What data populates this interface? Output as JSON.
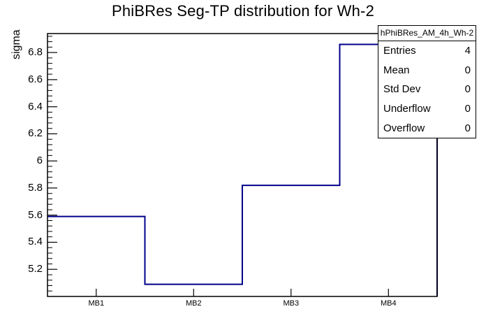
{
  "colors": {
    "line": "#00008b",
    "axis": "#000000",
    "background": "#ffffff"
  },
  "chart_data": {
    "type": "line",
    "style": "step-histogram",
    "title": "PhiBRes Seg-TP distribution for Wh-2",
    "xlabel": "",
    "ylabel": "sigma",
    "categories": [
      "MB1",
      "MB2",
      "MB3",
      "MB4"
    ],
    "values": [
      5.59,
      5.09,
      5.82,
      6.86
    ],
    "ylim": [
      5.0,
      6.94
    ],
    "ytick_values": [
      5.2,
      5.4,
      5.6,
      5.8,
      6,
      6.2,
      6.4,
      6.6,
      6.8
    ],
    "ytick_labels": [
      "5.2",
      "5.4",
      "5.6",
      "5.8",
      "6",
      "6.2",
      "6.4",
      "6.6",
      "6.8"
    ],
    "y_minor_step": 0.04,
    "grid": "off",
    "legend": "none"
  },
  "stats": {
    "title": "hPhiBRes_AM_4h_Wh-2",
    "rows": [
      {
        "label": "Entries",
        "value": "4"
      },
      {
        "label": "Mean",
        "value": "0"
      },
      {
        "label": "Std Dev",
        "value": "0"
      },
      {
        "label": "Underflow",
        "value": "0"
      },
      {
        "label": "Overflow",
        "value": "0"
      }
    ]
  }
}
